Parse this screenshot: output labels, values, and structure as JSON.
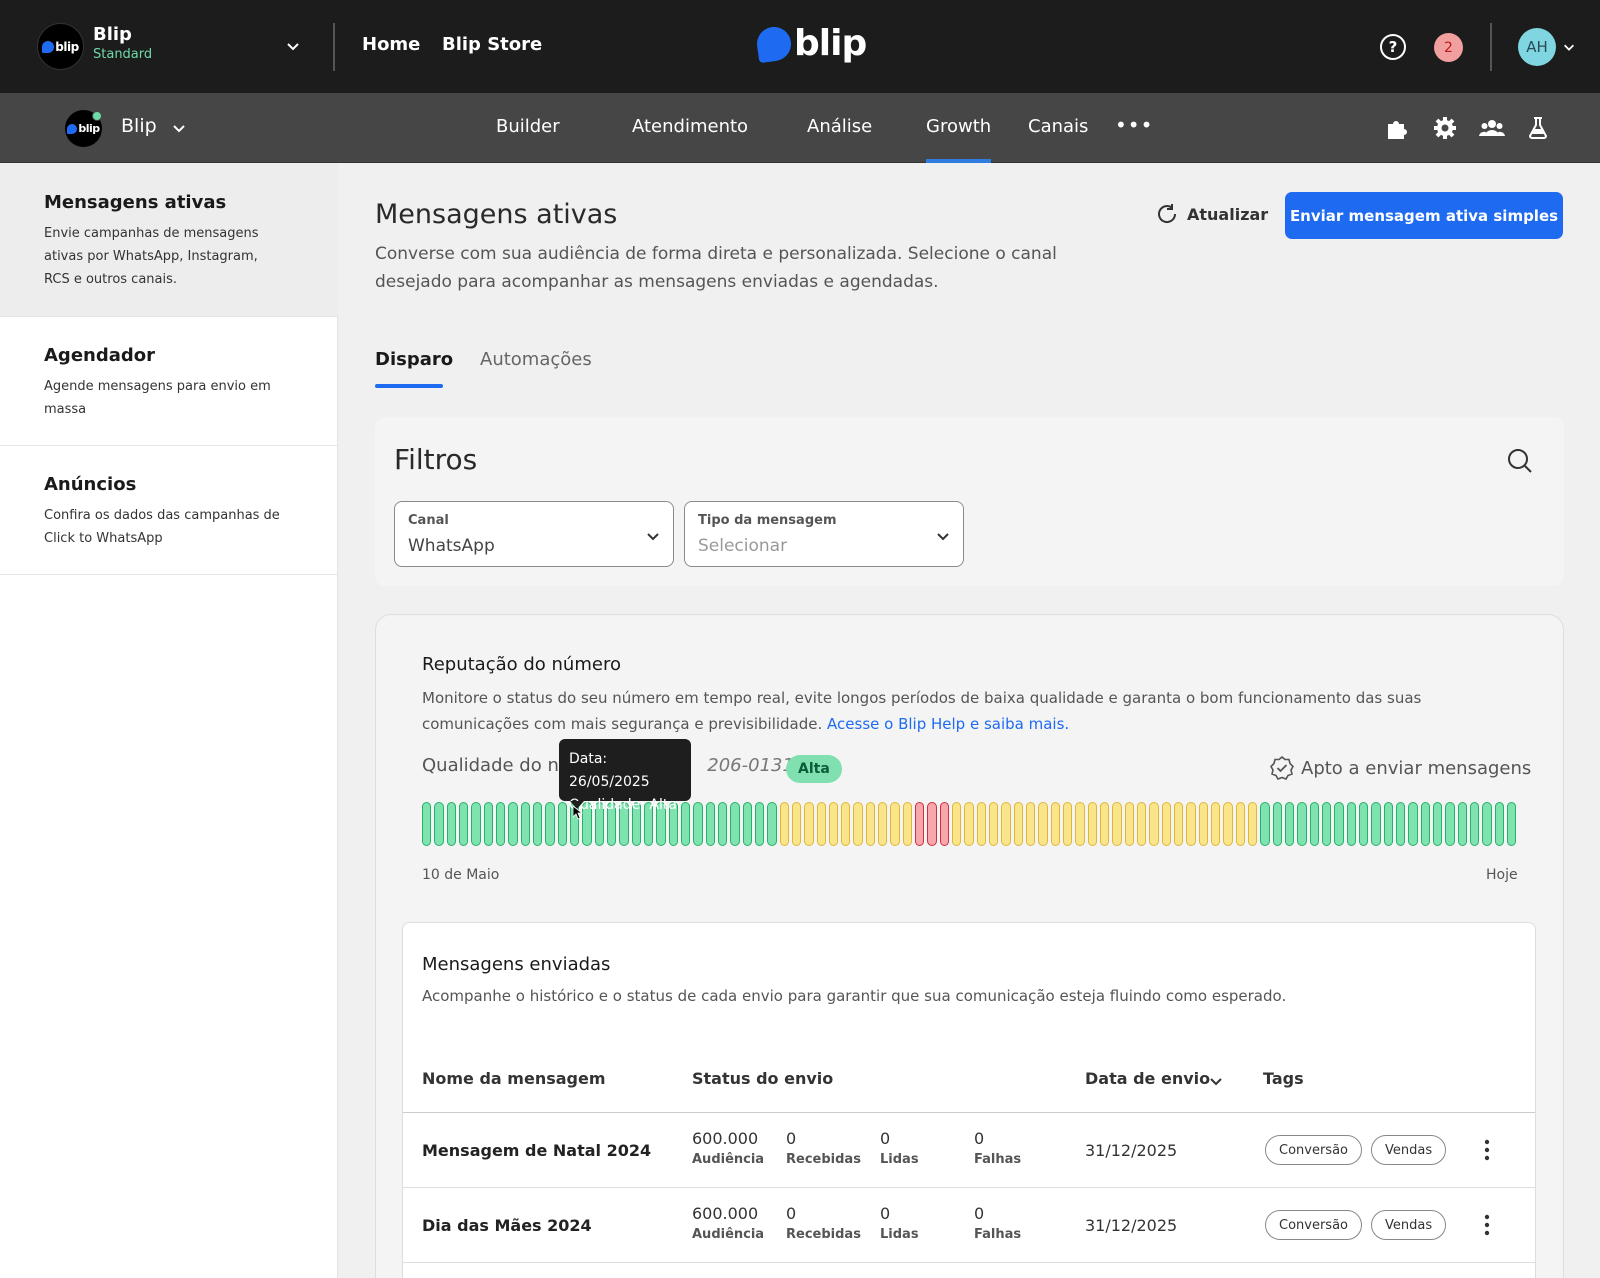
{
  "topbar": {
    "logo_text": "blip",
    "org_name": "Blip",
    "org_plan": "Standard",
    "nav": [
      "Home",
      "Blip Store"
    ],
    "brand": "blip",
    "help_icon": "help-circle-icon",
    "notifications_count": "2",
    "avatar_initials": "AH"
  },
  "subnav": {
    "bot_name": "Blip",
    "tabs": [
      "Builder",
      "Atendimento",
      "Análise",
      "Growth",
      "Canais"
    ],
    "active_tab": "Growth",
    "more": "•••",
    "icons": [
      "puzzle-icon",
      "gear-icon",
      "team-icon",
      "flask-icon"
    ]
  },
  "sidebar": {
    "items": [
      {
        "title": "Mensagens ativas",
        "desc": "Envie campanhas de mensagens ativas por WhatsApp, Instagram, RCS e outros canais."
      },
      {
        "title": "Agendador",
        "desc": "Agende mensagens para envio em massa"
      },
      {
        "title": "Anúncios",
        "desc": "Confira os dados das campanhas de Click to WhatsApp"
      }
    ]
  },
  "header": {
    "title": "Mensagens ativas",
    "desc": "Converse com sua audiência de forma direta e personalizada. Selecione o canal desejado para acompanhar as mensagens enviadas e agendadas.",
    "refresh_label": "Atualizar",
    "primary_label": "Enviar mensagem ativa simples"
  },
  "tabs": {
    "items": [
      "Disparo",
      "Automações"
    ],
    "active": "Disparo"
  },
  "filters": {
    "title": "Filtros",
    "canal": {
      "label": "Canal",
      "value": "WhatsApp"
    },
    "tipo": {
      "label": "Tipo da mensagem",
      "placeholder": "Selecionar"
    }
  },
  "reputation": {
    "title": "Reputação do número",
    "desc": "Monitore o status do seu número em tempo real, evite longos períodos de baixa qualidade e garanta o bom funcionamento das suas comunicações com mais segurança e previsibilidade.",
    "link": "Acesse o Blip Help e saiba mais.",
    "quality_prefix": "Qualidade do nú",
    "quality_number": "206-0131:",
    "badge": "Alta",
    "status": "Apto a enviar mensagens",
    "axis_start": "10 de Maio",
    "axis_end": "Hoje",
    "tooltip": {
      "date": "Data: 26/05/2025",
      "quality": "Qualidade: Alta"
    },
    "series": [
      "alta",
      "alta",
      "alta",
      "alta",
      "alta",
      "alta",
      "alta",
      "alta",
      "alta",
      "alta",
      "alta",
      "alta",
      "alta",
      "alta",
      "alta",
      "alta",
      "alta",
      "alta",
      "alta",
      "alta",
      "alta",
      "alta",
      "alta",
      "alta",
      "alta",
      "alta",
      "alta",
      "alta",
      "alta",
      "media",
      "media",
      "media",
      "media",
      "media",
      "media",
      "media",
      "media",
      "media",
      "media",
      "media",
      "baixa",
      "baixa",
      "baixa",
      "media",
      "media",
      "media",
      "media",
      "media",
      "media",
      "media",
      "media",
      "media",
      "media",
      "media",
      "media",
      "media",
      "media",
      "media",
      "media",
      "media",
      "media",
      "media",
      "media",
      "media",
      "media",
      "media",
      "media",
      "media",
      "alta",
      "alta",
      "alta",
      "alta",
      "alta",
      "alta",
      "alta",
      "alta",
      "alta",
      "alta",
      "alta",
      "alta",
      "alta",
      "alta",
      "alta",
      "alta",
      "alta",
      "alta",
      "alta",
      "alta",
      "alta"
    ]
  },
  "messages": {
    "title": "Mensagens enviadas",
    "desc": "Acompanhe o histórico e o status de cada envio para garantir que sua comunicação esteja fluindo como esperado.",
    "columns": [
      "Nome da mensagem",
      "Status do envio",
      "Data de envio",
      "Tags"
    ],
    "rows": [
      {
        "name": "Mensagem de Natal 2024",
        "audiencia": "600.000",
        "recebidas": "0",
        "lidas": "0",
        "falhas": "0",
        "date": "31/12/2025",
        "tags": [
          "Conversão",
          "Vendas"
        ]
      },
      {
        "name": "Dia das Mães 2024",
        "audiencia": "600.000",
        "recebidas": "0",
        "lidas": "0",
        "falhas": "0",
        "date": "31/12/2025",
        "tags": [
          "Conversão",
          "Vendas"
        ]
      }
    ],
    "stat_labels": [
      "Audiência",
      "Recebidas",
      "Lidas",
      "Falhas"
    ]
  }
}
